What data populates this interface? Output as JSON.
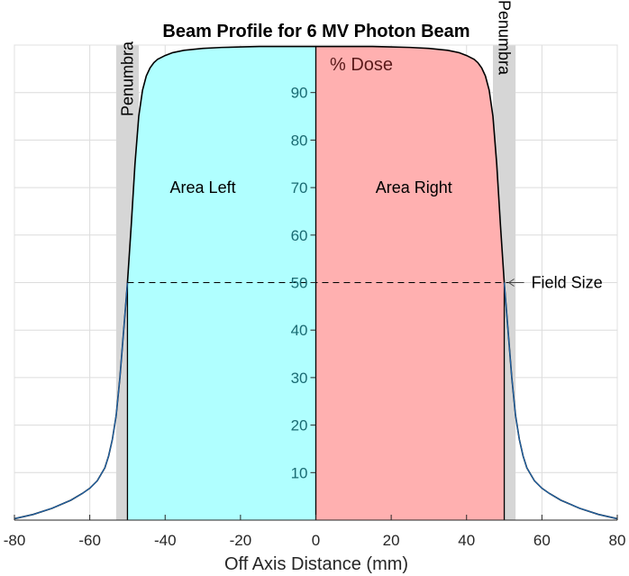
{
  "chart_data": {
    "type": "area",
    "title": "Beam Profile for 6 MV Photon Beam",
    "xlabel": "Off Axis Distance (mm)",
    "ylabel": "% Dose",
    "xlim": [
      -80,
      80
    ],
    "ylim": [
      0,
      100
    ],
    "x_ticks": [
      -80,
      -60,
      -40,
      -20,
      0,
      20,
      40,
      60,
      80
    ],
    "y_ticks": [
      10,
      20,
      30,
      40,
      50,
      60,
      70,
      80,
      90
    ],
    "grid": true,
    "field_size_level": 50,
    "penumbra_regions": [
      {
        "label": "Penumbra",
        "x_range": [
          -53,
          -47
        ]
      },
      {
        "label": "Penumbra",
        "x_range": [
          47,
          53
        ]
      }
    ],
    "shaded_regions": [
      {
        "label": "Area Left",
        "x_range": [
          -50,
          0
        ],
        "color": "#b0ffff"
      },
      {
        "label": "Area Right",
        "x_range": [
          0,
          50
        ],
        "color": "#ffb0b0"
      }
    ],
    "annotations": {
      "field_size": "Field Size"
    },
    "series": [
      {
        "color": "#2166ac",
        "x": [
          -80,
          -75,
          -70,
          -65,
          -62,
          -60,
          -58,
          -56,
          -55,
          -54,
          -53,
          -52,
          -51,
          -50,
          -49,
          -48,
          -47,
          -46,
          -45,
          -44,
          -43,
          -42,
          -40,
          -38,
          -35,
          -30,
          -25,
          -20,
          -15,
          -10,
          -5,
          0,
          5,
          10,
          15,
          20,
          25,
          30,
          35,
          38,
          40,
          42,
          43,
          44,
          45,
          46,
          47,
          48,
          49,
          50,
          51,
          52,
          53,
          54,
          55,
          56,
          58,
          60,
          62,
          65,
          70,
          75,
          80
        ],
        "y": [
          0.3,
          1.2,
          2.5,
          4.2,
          5.6,
          6.7,
          8.3,
          11,
          13.5,
          17,
          22,
          30,
          40,
          50,
          62,
          75,
          85,
          90.5,
          93.5,
          95.2,
          96.3,
          97,
          97.8,
          98.4,
          98.9,
          99.3,
          99.5,
          99.6,
          99.7,
          99.7,
          99.7,
          99.7,
          99.7,
          99.7,
          99.7,
          99.6,
          99.5,
          99.3,
          98.9,
          98.4,
          97.8,
          97,
          96.3,
          95.2,
          93.5,
          90.5,
          85,
          75,
          62,
          50,
          40,
          30,
          22,
          17,
          13.5,
          11,
          8.3,
          6.7,
          5.6,
          4.2,
          2.5,
          1.2,
          0.3
        ]
      }
    ]
  }
}
